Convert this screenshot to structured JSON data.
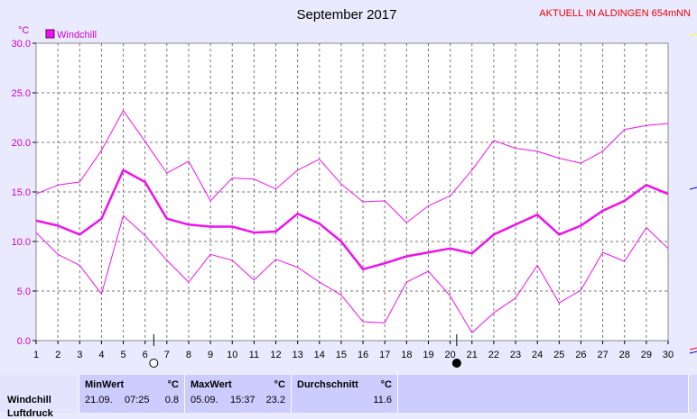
{
  "header": {
    "title": "September 2017",
    "station": "AKTUELL IN ALDINGEN 654mNN"
  },
  "colors": {
    "series": "#ee11ee",
    "background": "#eaeaff",
    "plot_background": "#ffffff",
    "title_accent": "#ee0000"
  },
  "chart_data": {
    "type": "line",
    "ylabel": "°C",
    "x": [
      1,
      2,
      3,
      4,
      5,
      6,
      7,
      8,
      9,
      10,
      11,
      12,
      13,
      14,
      15,
      16,
      17,
      18,
      19,
      20,
      21,
      22,
      23,
      24,
      25,
      26,
      27,
      28,
      29,
      30
    ],
    "xlim": [
      1,
      30
    ],
    "ylim": [
      0,
      30
    ],
    "yticks": [
      "0.0",
      "5.0",
      "10.0",
      "15.0",
      "20.0",
      "25.0",
      "30.0"
    ],
    "grid": true,
    "legend_position": "top-left",
    "legend": [
      "Windchill"
    ],
    "series": [
      {
        "name": "Windchill",
        "role": "mean",
        "values": [
          12.1,
          11.6,
          10.7,
          12.3,
          17.2,
          16.0,
          12.3,
          11.7,
          11.5,
          11.5,
          10.9,
          11.0,
          12.8,
          11.8,
          10.0,
          7.2,
          7.8,
          8.5,
          8.9,
          9.3,
          8.8,
          10.7,
          11.7,
          12.7,
          10.7,
          11.6,
          13.1,
          14.1,
          15.7,
          14.8
        ]
      },
      {
        "role": "max",
        "values": [
          14.8,
          15.7,
          16.0,
          19.2,
          23.2,
          20.1,
          16.9,
          18.1,
          14.1,
          16.4,
          16.3,
          15.3,
          17.2,
          18.3,
          15.8,
          14.0,
          14.1,
          11.9,
          13.6,
          14.6,
          17.2,
          20.2,
          19.4,
          19.1,
          18.4,
          17.9,
          19.1,
          21.3,
          21.7,
          21.9
        ]
      },
      {
        "role": "min",
        "values": [
          10.9,
          8.7,
          7.6,
          4.7,
          12.6,
          10.6,
          8.1,
          5.9,
          8.7,
          8.1,
          6.1,
          8.2,
          7.4,
          5.9,
          4.6,
          1.9,
          1.8,
          5.9,
          7.0,
          4.5,
          0.8,
          2.8,
          4.3,
          7.6,
          3.8,
          5.1,
          8.9,
          8.0,
          11.4,
          9.3
        ]
      }
    ],
    "moon_phases": [
      {
        "day": 6.4,
        "phase": "full"
      },
      {
        "day": 20.3,
        "phase": "new"
      }
    ]
  },
  "stats": {
    "row_label": "Windchill",
    "row_label_next": "Luftdruck",
    "min": {
      "header": "MinWert",
      "unit": "°C",
      "date": "21.09.",
      "time": "07:25",
      "value": "0.8"
    },
    "max": {
      "header": "MaxWert",
      "unit": "°C",
      "date": "05.09.",
      "time": "15:37",
      "value": "23.2"
    },
    "avg": {
      "header": "Durchschnitt",
      "unit": "°C",
      "value": "11.6"
    }
  }
}
